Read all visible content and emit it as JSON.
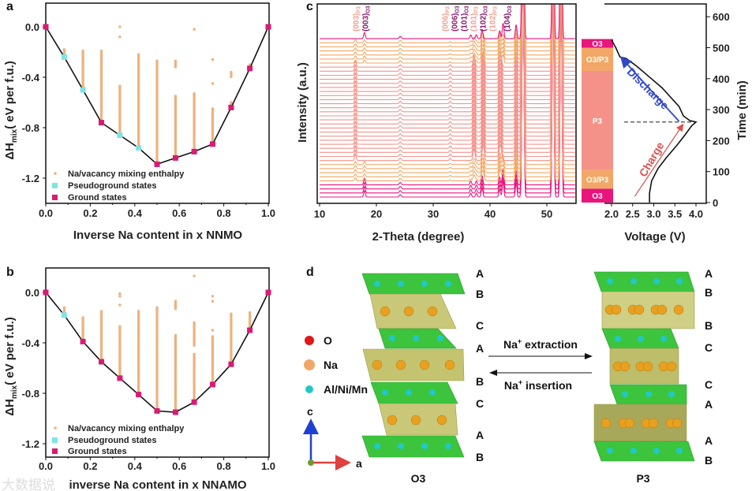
{
  "panel_letters": {
    "a": "a",
    "b": "b",
    "c": "c",
    "d": "d"
  },
  "watermark": "大数据说",
  "colors": {
    "scatter": "#EDB27E",
    "pseudo": "#7FE3E6",
    "ground": "#D81B74",
    "o3": "#E8157C",
    "o3p3": "#F2A766",
    "p3": "#F4928A",
    "discharge": "#3048C8",
    "charge": "#D9534F"
  },
  "chart_data": [
    {
      "id": "a",
      "type": "scatter",
      "xlabel": "Inverse Na content in x NNMO",
      "ylabel_main": "ΔH",
      "ylabel_sub": "mix",
      "ylabel_rest": "( eV per f.u.)",
      "xlim": [
        0,
        1.0
      ],
      "ylim": [
        -1.4,
        0.2
      ],
      "xticks": [
        "0.0",
        "0.2",
        "0.4",
        "0.6",
        "0.8",
        "1.0"
      ],
      "yticks": [
        "0.0",
        "-0.4",
        "-0.8",
        "-1.2"
      ],
      "legend": [
        "Na/vacancy mixing enthalpy",
        "Pseudoground states",
        "Ground states"
      ],
      "legend_position": "bottom-left",
      "mixing_ranges": [
        {
          "x": 0.083,
          "from": -0.18,
          "to": -0.24
        },
        {
          "x": 0.167,
          "from": -0.19,
          "to": -0.5
        },
        {
          "x": 0.25,
          "from": -0.19,
          "to": -0.76
        },
        {
          "x": 0.333,
          "from": -0.47,
          "to": -0.86
        },
        {
          "x": 0.417,
          "from": -0.22,
          "to": -0.96
        },
        {
          "x": 0.5,
          "from": -0.27,
          "to": -1.09
        },
        {
          "x": 0.583,
          "from": -0.27,
          "to": -0.32
        },
        {
          "x": 0.583,
          "from": -0.55,
          "to": -1.04
        },
        {
          "x": 0.667,
          "from": -0.53,
          "to": -0.99
        },
        {
          "x": 0.75,
          "from": -0.65,
          "to": -0.93
        },
        {
          "x": 0.833,
          "from": -0.36,
          "to": -0.4
        },
        {
          "x": 0.833,
          "from": -0.6,
          "to": -0.64
        },
        {
          "x": 0.917,
          "from": -0.3,
          "to": -0.33
        }
      ],
      "mixing_outliers": [
        [
          0.333,
          0.0
        ],
        [
          0.333,
          -0.08
        ],
        [
          0.667,
          -0.02
        ],
        [
          0.75,
          -0.26
        ],
        [
          0.75,
          -0.45
        ]
      ],
      "pseudoground": [
        [
          0.083,
          -0.24
        ],
        [
          0.167,
          -0.5
        ],
        [
          0.333,
          -0.86
        ],
        [
          0.417,
          -0.96
        ]
      ],
      "ground": [
        [
          0,
          0
        ],
        [
          0.25,
          -0.76
        ],
        [
          0.5,
          -1.09
        ],
        [
          0.583,
          -1.04
        ],
        [
          0.667,
          -0.99
        ],
        [
          0.75,
          -0.93
        ],
        [
          0.833,
          -0.64
        ],
        [
          0.917,
          -0.33
        ],
        [
          1.0,
          0
        ]
      ],
      "hull": [
        [
          0,
          0
        ],
        [
          0.083,
          -0.24
        ],
        [
          0.167,
          -0.5
        ],
        [
          0.25,
          -0.76
        ],
        [
          0.333,
          -0.86
        ],
        [
          0.417,
          -0.96
        ],
        [
          0.5,
          -1.09
        ],
        [
          0.583,
          -1.04
        ],
        [
          0.667,
          -0.99
        ],
        [
          0.75,
          -0.93
        ],
        [
          0.833,
          -0.64
        ],
        [
          0.917,
          -0.33
        ],
        [
          1.0,
          0
        ]
      ]
    },
    {
      "id": "b",
      "type": "scatter",
      "xlabel": "inverse Na content in x NNAMO",
      "ylabel_main": "ΔH",
      "ylabel_sub": "mix",
      "ylabel_rest": "( eV per f.u.)",
      "xlim": [
        0,
        1.0
      ],
      "ylim": [
        -1.3,
        0.2
      ],
      "xticks": [
        "0.0",
        "0.2",
        "0.4",
        "0.6",
        "0.8",
        "1.0"
      ],
      "yticks": [
        "0.0",
        "-0.4",
        "-0.8",
        "-1.2"
      ],
      "legend": [
        "Na/vacancy mixing enthalpy",
        "Pseudoground states",
        "Ground states"
      ],
      "legend_position": "bottom-left",
      "mixing_ranges": [
        {
          "x": 0.083,
          "from": -0.12,
          "to": -0.18
        },
        {
          "x": 0.167,
          "from": -0.2,
          "to": -0.39
        },
        {
          "x": 0.25,
          "from": -0.15,
          "to": -0.55
        },
        {
          "x": 0.333,
          "from": -0.27,
          "to": -0.68
        },
        {
          "x": 0.417,
          "from": -0.15,
          "to": -0.81
        },
        {
          "x": 0.5,
          "from": -0.12,
          "to": -0.94
        },
        {
          "x": 0.583,
          "from": -0.07,
          "to": -0.13
        },
        {
          "x": 0.583,
          "from": -0.34,
          "to": -0.95
        },
        {
          "x": 0.667,
          "from": -0.24,
          "to": -0.42
        },
        {
          "x": 0.667,
          "from": -0.49,
          "to": -0.87
        },
        {
          "x": 0.75,
          "from": -0.35,
          "to": -0.73
        },
        {
          "x": 0.833,
          "from": -0.17,
          "to": -0.57
        },
        {
          "x": 0.917,
          "from": -0.16,
          "to": -0.3
        }
      ],
      "mixing_outliers": [
        [
          0.333,
          -0.01
        ],
        [
          0.333,
          -0.03
        ],
        [
          0.333,
          -0.1
        ],
        [
          0.667,
          0.13
        ],
        [
          0.75,
          -0.03
        ],
        [
          0.75,
          -0.07
        ],
        [
          0.75,
          -0.3
        ]
      ],
      "pseudoground": [
        [
          0.083,
          -0.18
        ]
      ],
      "ground": [
        [
          0,
          0
        ],
        [
          0.167,
          -0.39
        ],
        [
          0.25,
          -0.55
        ],
        [
          0.333,
          -0.68
        ],
        [
          0.417,
          -0.81
        ],
        [
          0.5,
          -0.94
        ],
        [
          0.583,
          -0.95
        ],
        [
          0.667,
          -0.87
        ],
        [
          0.75,
          -0.73
        ],
        [
          0.833,
          -0.57
        ],
        [
          0.917,
          -0.3
        ],
        [
          1.0,
          0
        ]
      ],
      "hull": [
        [
          0,
          0
        ],
        [
          0.083,
          -0.18
        ],
        [
          0.167,
          -0.39
        ],
        [
          0.25,
          -0.55
        ],
        [
          0.333,
          -0.68
        ],
        [
          0.417,
          -0.81
        ],
        [
          0.5,
          -0.94
        ],
        [
          0.583,
          -0.95
        ],
        [
          0.667,
          -0.87
        ],
        [
          0.75,
          -0.73
        ],
        [
          0.833,
          -0.57
        ],
        [
          0.917,
          -0.3
        ],
        [
          1.0,
          0
        ]
      ]
    },
    {
      "id": "c-xrd",
      "type": "line",
      "xlabel": "2-Theta (degree)",
      "ylabel": "Intensity (a.u.)",
      "xlim": [
        10,
        55
      ],
      "xticks": [
        "10",
        "20",
        "30",
        "40",
        "50"
      ],
      "scan_count": 40,
      "minutes_per_scan": 13,
      "common_peaks": [
        [
          24.2,
          3,
          0.25
        ],
        [
          41.7,
          10,
          0.2
        ],
        [
          44.6,
          18,
          0.2
        ],
        [
          45.8,
          300,
          0.22
        ],
        [
          51.1,
          300,
          0.2
        ],
        [
          52.5,
          300,
          0.2
        ]
      ],
      "o3_peaks": [
        [
          17.9,
          8,
          0.2
        ],
        [
          36.6,
          5,
          0.2
        ],
        [
          37.6,
          5,
          0.2
        ],
        [
          38.6,
          12,
          0.2
        ],
        [
          42.3,
          20,
          0.2
        ]
      ],
      "p3_peaks": [
        [
          16.3,
          8,
          0.2
        ],
        [
          33.0,
          3,
          0.2
        ],
        [
          37.2,
          15,
          0.25
        ],
        [
          38.8,
          20,
          0.25
        ],
        [
          41.9,
          15,
          0.25
        ]
      ],
      "peak_labels": [
        {
          "main": "(003)",
          "sub": "P3",
          "phase": "P3",
          "two_theta": 16.3
        },
        {
          "main": "(003)",
          "sub": "O3",
          "phase": "O3",
          "two_theta": 17.9
        },
        {
          "main": "(006)",
          "sub": "P3",
          "phase": "P3",
          "two_theta": 32.0
        },
        {
          "main": "(006)",
          "sub": "O3",
          "phase": "O3",
          "two_theta": 33.5
        },
        {
          "main": "(101)",
          "sub": "O3",
          "phase": "O3",
          "two_theta": 34.9
        },
        {
          "main": "(101)",
          "sub": "P3",
          "phase": "P3",
          "two_theta": 36.2
        },
        {
          "main": "(102)",
          "sub": "O3",
          "phase": "O3",
          "two_theta": 37.2
        },
        {
          "main": "(102)",
          "sub": "P3",
          "phase": "P3",
          "two_theta": 38.4
        },
        {
          "main": "(104)",
          "sub": "O3",
          "phase": "O3",
          "two_theta": 42.9
        }
      ]
    },
    {
      "id": "c-voltage",
      "type": "line",
      "xlabel": "Voltage (V)",
      "ylabel": "Time (min)",
      "xlim": [
        1.8,
        4.25
      ],
      "ylim": [
        0,
        640
      ],
      "xticks": [
        "2.0",
        "2.5",
        "3.0",
        "3.5",
        "4.0"
      ],
      "yticks": [
        "0",
        "100",
        "200",
        "300",
        "400",
        "500",
        "600"
      ],
      "curve": [
        [
          2.9,
          0
        ],
        [
          2.9,
          30
        ],
        [
          2.95,
          70
        ],
        [
          3.1,
          110
        ],
        [
          3.3,
          145
        ],
        [
          3.55,
          185
        ],
        [
          3.75,
          220
        ],
        [
          3.9,
          248
        ],
        [
          4.0,
          260
        ],
        [
          3.85,
          265
        ],
        [
          3.7,
          280
        ],
        [
          3.6,
          310
        ],
        [
          3.4,
          340
        ],
        [
          3.2,
          370
        ],
        [
          2.9,
          405
        ],
        [
          2.6,
          440
        ],
        [
          2.35,
          465
        ],
        [
          2.2,
          470
        ],
        [
          2.1,
          500
        ],
        [
          2.0,
          525
        ]
      ],
      "switch_time": 260,
      "phases": [
        {
          "label": "O3",
          "from": 0,
          "to": 45,
          "key": "o3"
        },
        {
          "label": "O3/P3",
          "from": 45,
          "to": 105,
          "key": "o3p3"
        },
        {
          "label": "P3",
          "from": 105,
          "to": 425,
          "key": "p3"
        },
        {
          "label": "O3/P3",
          "from": 425,
          "to": 500,
          "key": "o3p3"
        },
        {
          "label": "O3",
          "from": 500,
          "to": 528,
          "key": "o3"
        }
      ],
      "annotations": {
        "discharge": "Discharge",
        "charge": "Charge"
      }
    }
  ],
  "diagram": {
    "legend": [
      "O",
      "Na",
      "Al/Ni/Mn"
    ],
    "axes": {
      "c": "c",
      "a": "a"
    },
    "extraction": {
      "main": "Na",
      "sup": "+",
      "rest": " extraction"
    },
    "insertion": {
      "main": "Na",
      "sup": "+",
      "rest": " insertion"
    },
    "o3_title": "O3",
    "p3_title": "P3",
    "o3_stacking": [
      "A",
      "B",
      "C",
      "A",
      "B",
      "C",
      "A",
      "B"
    ],
    "p3_stacking": [
      "A",
      "B",
      "B",
      "C",
      "C",
      "A",
      "A",
      "B"
    ]
  }
}
